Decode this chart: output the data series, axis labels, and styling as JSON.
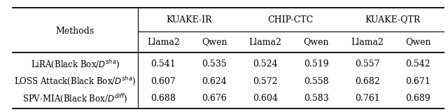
{
  "col_groups": [
    "KUAKE-IR",
    "CHIP-CTC",
    "KUAKE-QTR"
  ],
  "sub_cols": [
    "Llama2",
    "Qwen"
  ],
  "methods": [
    "LiRA(Black Box/$D^{sha}$)",
    "LOSS Attack(Black Box/$D^{sha}$)",
    "SPV-MIA(Black Box/$D^{diff}$)"
  ],
  "data": [
    [
      0.541,
      0.535,
      0.524,
      0.519,
      0.557,
      0.542
    ],
    [
      0.607,
      0.624,
      0.572,
      0.558,
      0.682,
      0.671
    ],
    [
      0.688,
      0.676,
      0.604,
      0.583,
      0.761,
      0.689
    ]
  ],
  "background_color": "#ffffff",
  "text_color": "#000000",
  "fontsize": 9,
  "header_fontsize": 9
}
